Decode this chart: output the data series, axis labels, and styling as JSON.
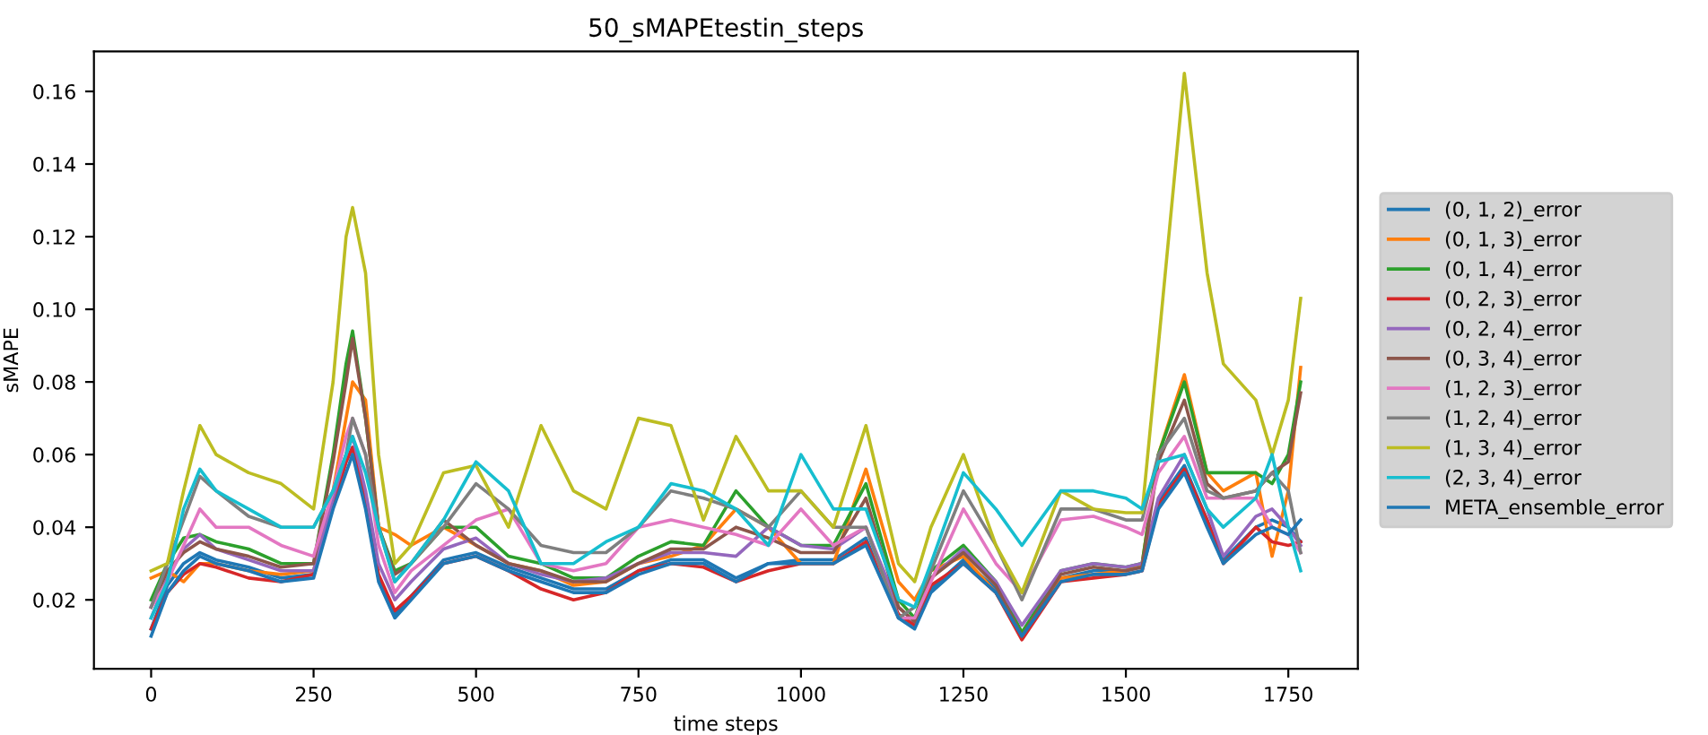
{
  "chart_data": {
    "type": "line",
    "title": "50_sMAPEtestin_steps",
    "xlabel": "time steps",
    "ylabel": "sMAPE",
    "x": [
      0,
      25,
      50,
      75,
      100,
      150,
      200,
      250,
      280,
      300,
      310,
      330,
      350,
      375,
      400,
      450,
      500,
      550,
      600,
      650,
      700,
      750,
      800,
      850,
      900,
      950,
      1000,
      1050,
      1100,
      1150,
      1175,
      1200,
      1250,
      1300,
      1340,
      1400,
      1450,
      1500,
      1525,
      1550,
      1590,
      1625,
      1650,
      1700,
      1725,
      1750,
      1769
    ],
    "xlim": [
      -88,
      1857
    ],
    "xticks": [
      0,
      250,
      500,
      750,
      1000,
      1250,
      1500,
      1750
    ],
    "ylim": [
      0.001,
      0.171
    ],
    "yticks": [
      {
        "value": 0.02,
        "label": "0.02"
      },
      {
        "value": 0.04,
        "label": "0.04"
      },
      {
        "value": 0.06,
        "label": "0.06"
      },
      {
        "value": 0.08,
        "label": "0.08"
      },
      {
        "value": 0.1,
        "label": "0.10"
      },
      {
        "value": 0.12,
        "label": "0.12"
      },
      {
        "value": 0.14,
        "label": "0.14"
      },
      {
        "value": 0.16,
        "label": "0.16"
      }
    ],
    "grid": false,
    "legend": "right",
    "line_style": "solid",
    "marker": "none",
    "series": [
      {
        "name": "(0, 1, 2)_error",
        "color": "#1f77b4",
        "values": [
          0.012,
          0.024,
          0.03,
          0.033,
          0.031,
          0.029,
          0.026,
          0.027,
          0.046,
          0.058,
          0.062,
          0.046,
          0.026,
          0.016,
          0.021,
          0.031,
          0.033,
          0.029,
          0.026,
          0.023,
          0.023,
          0.028,
          0.031,
          0.031,
          0.026,
          0.03,
          0.031,
          0.031,
          0.037,
          0.016,
          0.013,
          0.023,
          0.031,
          0.023,
          0.011,
          0.026,
          0.028,
          0.028,
          0.029,
          0.047,
          0.057,
          0.042,
          0.031,
          0.04,
          0.042,
          0.04,
          0.036
        ]
      },
      {
        "name": "(0, 1, 3)_error",
        "color": "#ff7f0e",
        "values": [
          0.026,
          0.028,
          0.025,
          0.03,
          0.03,
          0.028,
          0.027,
          0.028,
          0.05,
          0.07,
          0.08,
          0.075,
          0.04,
          0.038,
          0.035,
          0.04,
          0.035,
          0.03,
          0.028,
          0.024,
          0.025,
          0.03,
          0.032,
          0.035,
          0.045,
          0.04,
          0.03,
          0.03,
          0.056,
          0.025,
          0.02,
          0.028,
          0.032,
          0.022,
          0.01,
          0.026,
          0.027,
          0.028,
          0.03,
          0.06,
          0.082,
          0.055,
          0.05,
          0.055,
          0.032,
          0.05,
          0.084
        ]
      },
      {
        "name": "(0, 1, 4)_error",
        "color": "#2ca02c",
        "values": [
          0.02,
          0.03,
          0.037,
          0.038,
          0.036,
          0.034,
          0.03,
          0.03,
          0.06,
          0.085,
          0.094,
          0.07,
          0.04,
          0.028,
          0.03,
          0.04,
          0.04,
          0.032,
          0.03,
          0.026,
          0.026,
          0.032,
          0.036,
          0.035,
          0.05,
          0.04,
          0.035,
          0.035,
          0.052,
          0.02,
          0.015,
          0.028,
          0.035,
          0.025,
          0.011,
          0.028,
          0.03,
          0.029,
          0.03,
          0.06,
          0.08,
          0.055,
          0.055,
          0.055,
          0.052,
          0.06,
          0.08
        ]
      },
      {
        "name": "(0, 2, 3)_error",
        "color": "#d62728",
        "values": [
          0.012,
          0.022,
          0.027,
          0.03,
          0.029,
          0.026,
          0.025,
          0.027,
          0.046,
          0.058,
          0.062,
          0.048,
          0.027,
          0.017,
          0.021,
          0.03,
          0.032,
          0.028,
          0.023,
          0.02,
          0.022,
          0.028,
          0.03,
          0.029,
          0.025,
          0.028,
          0.03,
          0.03,
          0.036,
          0.016,
          0.013,
          0.024,
          0.03,
          0.022,
          0.009,
          0.025,
          0.026,
          0.027,
          0.028,
          0.046,
          0.056,
          0.042,
          0.03,
          0.04,
          0.036,
          0.035,
          0.036
        ]
      },
      {
        "name": "(0, 2, 4)_error",
        "color": "#9467bd",
        "values": [
          0.015,
          0.026,
          0.034,
          0.038,
          0.034,
          0.031,
          0.028,
          0.028,
          0.048,
          0.06,
          0.065,
          0.05,
          0.03,
          0.02,
          0.025,
          0.034,
          0.037,
          0.03,
          0.027,
          0.025,
          0.026,
          0.03,
          0.033,
          0.033,
          0.032,
          0.04,
          0.035,
          0.034,
          0.04,
          0.018,
          0.014,
          0.026,
          0.034,
          0.025,
          0.013,
          0.028,
          0.03,
          0.029,
          0.03,
          0.048,
          0.06,
          0.045,
          0.032,
          0.043,
          0.045,
          0.04,
          0.035
        ]
      },
      {
        "name": "(0, 3, 4)_error",
        "color": "#8c564b",
        "values": [
          0.018,
          0.028,
          0.033,
          0.036,
          0.034,
          0.032,
          0.029,
          0.03,
          0.058,
          0.08,
          0.092,
          0.07,
          0.04,
          0.027,
          0.03,
          0.042,
          0.035,
          0.03,
          0.028,
          0.025,
          0.025,
          0.03,
          0.034,
          0.034,
          0.04,
          0.037,
          0.033,
          0.033,
          0.048,
          0.018,
          0.014,
          0.026,
          0.033,
          0.024,
          0.01,
          0.027,
          0.029,
          0.028,
          0.029,
          0.058,
          0.075,
          0.052,
          0.048,
          0.05,
          0.055,
          0.058,
          0.077
        ]
      },
      {
        "name": "(1, 2, 3)_error",
        "color": "#e377c2",
        "values": [
          0.018,
          0.025,
          0.035,
          0.045,
          0.04,
          0.04,
          0.035,
          0.032,
          0.05,
          0.065,
          0.07,
          0.06,
          0.035,
          0.022,
          0.028,
          0.035,
          0.042,
          0.045,
          0.03,
          0.028,
          0.03,
          0.04,
          0.042,
          0.04,
          0.038,
          0.035,
          0.045,
          0.035,
          0.04,
          0.015,
          0.015,
          0.025,
          0.045,
          0.03,
          0.022,
          0.042,
          0.043,
          0.04,
          0.038,
          0.055,
          0.065,
          0.048,
          0.048,
          0.048,
          0.04,
          0.038,
          0.033
        ]
      },
      {
        "name": "(1, 2, 4)_error",
        "color": "#7f7f7f",
        "values": [
          0.018,
          0.03,
          0.042,
          0.054,
          0.05,
          0.043,
          0.04,
          0.04,
          0.05,
          0.06,
          0.07,
          0.06,
          0.04,
          0.025,
          0.03,
          0.04,
          0.052,
          0.045,
          0.035,
          0.033,
          0.033,
          0.04,
          0.05,
          0.048,
          0.045,
          0.04,
          0.05,
          0.04,
          0.04,
          0.015,
          0.018,
          0.028,
          0.05,
          0.035,
          0.02,
          0.045,
          0.045,
          0.042,
          0.042,
          0.06,
          0.07,
          0.05,
          0.048,
          0.05,
          0.055,
          0.05,
          0.033
        ]
      },
      {
        "name": "(1, 3, 4)_error",
        "color": "#bcbd22",
        "values": [
          0.028,
          0.03,
          0.05,
          0.068,
          0.06,
          0.055,
          0.052,
          0.045,
          0.08,
          0.12,
          0.128,
          0.11,
          0.06,
          0.03,
          0.035,
          0.055,
          0.057,
          0.04,
          0.068,
          0.05,
          0.045,
          0.07,
          0.068,
          0.042,
          0.065,
          0.05,
          0.05,
          0.04,
          0.068,
          0.03,
          0.025,
          0.04,
          0.06,
          0.035,
          0.022,
          0.05,
          0.045,
          0.044,
          0.044,
          0.09,
          0.165,
          0.11,
          0.085,
          0.075,
          0.06,
          0.075,
          0.103
        ]
      },
      {
        "name": "(2, 3, 4)_error",
        "color": "#17becf",
        "values": [
          0.015,
          0.025,
          0.045,
          0.056,
          0.05,
          0.045,
          0.04,
          0.04,
          0.05,
          0.06,
          0.065,
          0.055,
          0.04,
          0.025,
          0.03,
          0.042,
          0.058,
          0.05,
          0.03,
          0.03,
          0.036,
          0.04,
          0.052,
          0.05,
          0.045,
          0.035,
          0.06,
          0.045,
          0.045,
          0.02,
          0.018,
          0.03,
          0.055,
          0.045,
          0.035,
          0.05,
          0.05,
          0.048,
          0.045,
          0.058,
          0.06,
          0.045,
          0.04,
          0.048,
          0.06,
          0.04,
          0.028
        ]
      },
      {
        "name": "META_ensemble_error",
        "color": "#1f77b4",
        "values": [
          0.01,
          0.022,
          0.028,
          0.032,
          0.03,
          0.028,
          0.025,
          0.026,
          0.045,
          0.055,
          0.06,
          0.045,
          0.025,
          0.015,
          0.02,
          0.03,
          0.032,
          0.028,
          0.025,
          0.022,
          0.022,
          0.027,
          0.03,
          0.03,
          0.025,
          0.03,
          0.03,
          0.03,
          0.035,
          0.015,
          0.012,
          0.022,
          0.03,
          0.022,
          0.01,
          0.025,
          0.027,
          0.027,
          0.028,
          0.045,
          0.055,
          0.04,
          0.03,
          0.038,
          0.04,
          0.038,
          0.042
        ]
      }
    ]
  }
}
